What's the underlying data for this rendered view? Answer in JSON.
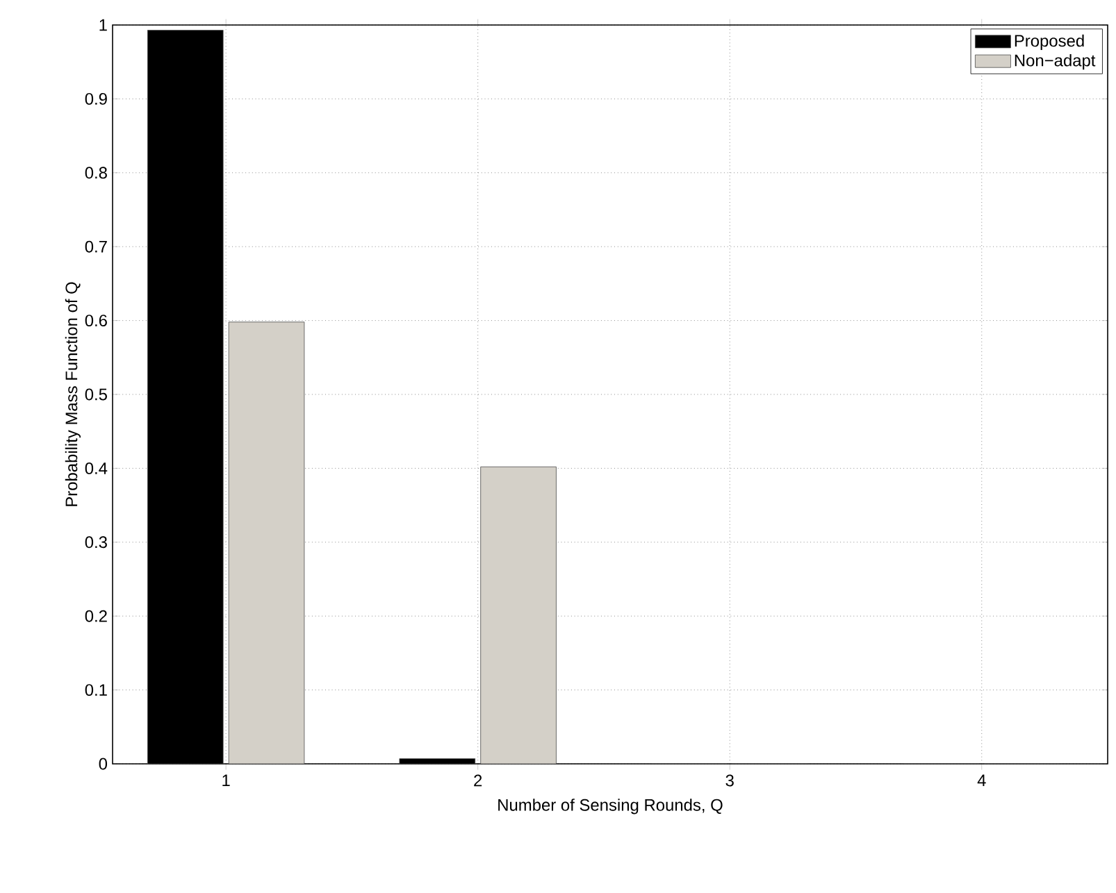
{
  "chart_data": {
    "type": "bar",
    "xlabel": "Number of Sensing Rounds, Q",
    "ylabel": "Probability Mass Function of Q",
    "categories": [
      "1",
      "2",
      "3",
      "4"
    ],
    "series": [
      {
        "name": "Proposed",
        "color": "#000000",
        "values": [
          0.993,
          0.007,
          0,
          0
        ]
      },
      {
        "name": "Non−adapt",
        "color": "#d4d0c8",
        "values": [
          0.598,
          0.402,
          0,
          0
        ]
      }
    ],
    "ylim": [
      0,
      1
    ],
    "yticks": [
      0,
      0.1,
      0.2,
      0.3,
      0.4,
      0.5,
      0.6,
      0.7,
      0.8,
      0.9,
      1
    ],
    "grid": true,
    "legend": "top right"
  }
}
